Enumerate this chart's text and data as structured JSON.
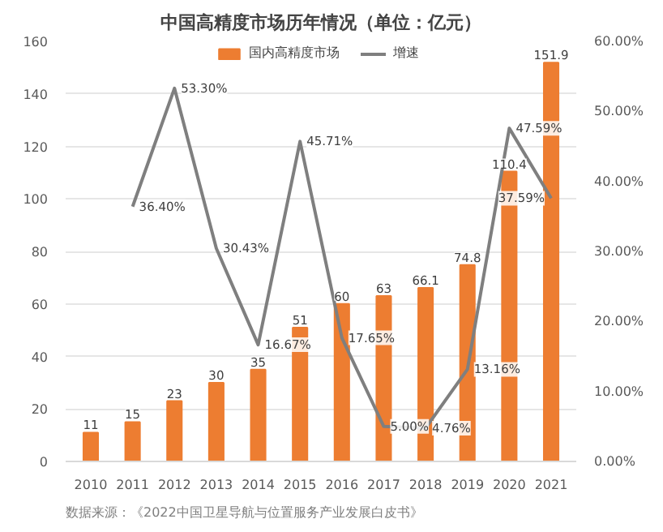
{
  "chart_data": {
    "type": "bar",
    "title": "中国高精度市场历年情况（单位：亿元）",
    "categories": [
      "2010",
      "2011",
      "2012",
      "2013",
      "2014",
      "2015",
      "2016",
      "2017",
      "2018",
      "2019",
      "2020",
      "2021"
    ],
    "series": [
      {
        "name": "国内高精度市场",
        "color": "#ed7d31",
        "values": [
          11,
          15,
          23,
          30,
          35,
          51,
          60,
          63,
          66.1,
          74.8,
          110.4,
          151.9
        ],
        "value_labels": [
          "11",
          "15",
          "23",
          "30",
          "35",
          "51",
          "60",
          "63",
          "66.1",
          "74.8",
          "110.4",
          "151.9"
        ]
      },
      {
        "name": "增速",
        "type": "line",
        "axis": "y2",
        "color": "#7f7f7f",
        "values": [
          null,
          36.4,
          53.3,
          30.43,
          16.67,
          45.71,
          17.65,
          5.0,
          4.76,
          13.16,
          47.59,
          37.59
        ],
        "value_labels": [
          null,
          "36.40%",
          "53.30%",
          "30.43%",
          "16.67%",
          "45.71%",
          "17.65%",
          "5.00%",
          "4.76%",
          "13.16%",
          "47.59%",
          "37.59%"
        ]
      }
    ],
    "ylim": [
      0,
      160
    ],
    "yticks": [
      0,
      20,
      40,
      60,
      80,
      100,
      120,
      140,
      160
    ],
    "y2lim": [
      0,
      60
    ],
    "y2ticks": [
      {
        "value": 0,
        "label": "0.00%"
      },
      {
        "value": 10,
        "label": "10.00%"
      },
      {
        "value": 20,
        "label": "20.00%"
      },
      {
        "value": 30,
        "label": "30.00%"
      },
      {
        "value": 40,
        "label": "40.00%"
      },
      {
        "value": 50,
        "label": "50.00%"
      },
      {
        "value": 60,
        "label": "60.00%"
      }
    ],
    "grid": "y",
    "legend": "top",
    "line_style": "solid",
    "marker": "none",
    "annotations": [
      "数据来源：《2022中国卫星导航与位置服务产业发展白皮书》"
    ]
  }
}
